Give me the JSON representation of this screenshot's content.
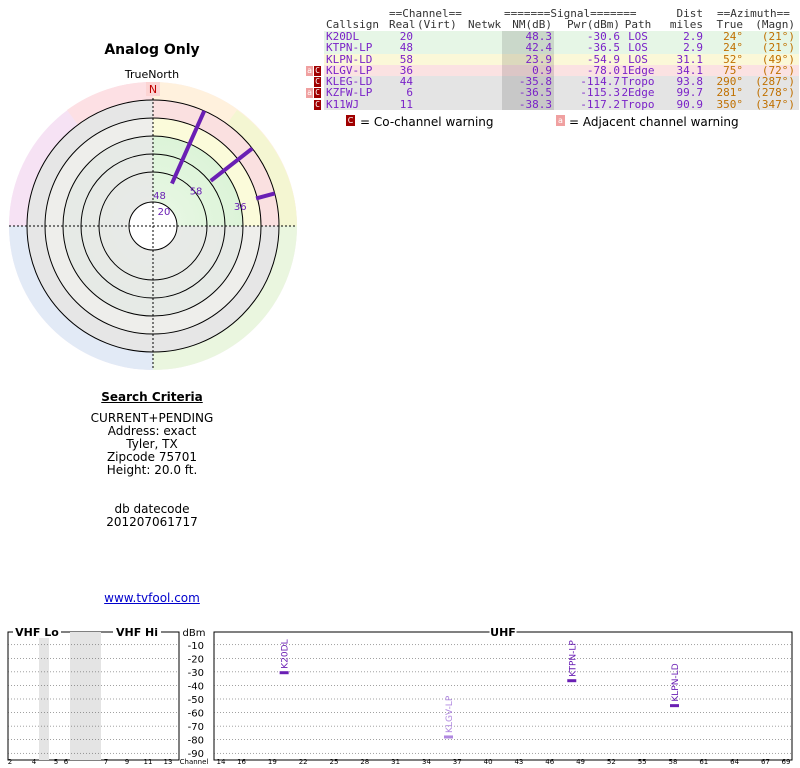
{
  "left_panel": {
    "title": "Analog Only",
    "north_label": "TrueNorth",
    "north_letter": "N"
  },
  "polar_plot": {
    "stations": [
      {
        "label": "48",
        "azimuth_true": 24,
        "nm_db": 42.4,
        "color": "#6a1fb4"
      },
      {
        "label": "20",
        "azimuth_true": 24,
        "nm_db": 48.3,
        "color": "#6a1fb4"
      },
      {
        "label": "58",
        "azimuth_true": 52,
        "nm_db": 23.9,
        "color": "#6a1fb4"
      },
      {
        "label": "36",
        "azimuth_true": 75,
        "nm_db": 0.9,
        "color": "#6a1fb4"
      }
    ]
  },
  "search": {
    "heading": "Search Criteria",
    "criteria": "CURRENT+PENDING",
    "address": "Address: exact",
    "city": "Tyler, TX",
    "zip": "Zipcode 75701",
    "height": "Height: 20.0 ft.",
    "datecode_label": "db datecode",
    "datecode": "201207061717",
    "link": "www.tvfool.com"
  },
  "table": {
    "group_headers": {
      "channel": "==Channel==",
      "signal": "=======Signal=======",
      "dist": "Dist",
      "azimuth": "==Azimuth=="
    },
    "col_headers": {
      "callsign": "Callsign",
      "real": "Real",
      "virt": "(Virt)",
      "netwk": "Netwk",
      "nm": "NM(dB)",
      "pwr": "Pwr(dBm)",
      "path": "Path",
      "dist": "miles",
      "true": "True",
      "magn": "(Magn)"
    },
    "rows": [
      {
        "callsign": "K20DL",
        "real": "20",
        "virt": "",
        "netwk": "",
        "nm": "48.3",
        "pwr": "-30.6",
        "path": "LOS",
        "dist": "2.9",
        "true": "24°",
        "magn": "(21°)",
        "bg": "#e6f6e6",
        "warn": []
      },
      {
        "callsign": "KTPN-LP",
        "real": "48",
        "virt": "",
        "netwk": "",
        "nm": "42.4",
        "pwr": "-36.5",
        "path": "LOS",
        "dist": "2.9",
        "true": "24°",
        "magn": "(21°)",
        "bg": "#e6f6e6",
        "warn": []
      },
      {
        "callsign": "KLPN-LD",
        "real": "58",
        "virt": "",
        "netwk": "",
        "nm": "23.9",
        "pwr": "-54.9",
        "path": "LOS",
        "dist": "31.1",
        "true": "52°",
        "magn": "(49°)",
        "bg": "#fbf8d8",
        "warn": []
      },
      {
        "callsign": "KLGV-LP",
        "real": "36",
        "virt": "",
        "netwk": "",
        "nm": "0.9",
        "pwr": "-78.0",
        "path": "1Edge",
        "dist": "34.1",
        "true": "75°",
        "magn": "(72°)",
        "bg": "#fbe2e2",
        "warn": [
          "adj",
          "co"
        ]
      },
      {
        "callsign": "KLEG-LD",
        "real": "44",
        "virt": "",
        "netwk": "",
        "nm": "-35.8",
        "pwr": "-114.7",
        "path": "Tropo",
        "dist": "93.8",
        "true": "290°",
        "magn": "(287°)",
        "bg": "#e4e4e4",
        "warn": [
          "co"
        ]
      },
      {
        "callsign": "KZFW-LP",
        "real": "6",
        "virt": "",
        "netwk": "",
        "nm": "-36.5",
        "pwr": "-115.3",
        "path": "2Edge",
        "dist": "99.7",
        "true": "281°",
        "magn": "(278°)",
        "bg": "#e4e4e4",
        "warn": [
          "adj",
          "co"
        ]
      },
      {
        "callsign": "K11WJ",
        "real": "11",
        "virt": "",
        "netwk": "",
        "nm": "-38.3",
        "pwr": "-117.2",
        "path": "Tropo",
        "dist": "90.9",
        "true": "350°",
        "magn": "(347°)",
        "bg": "#e4e4e4",
        "warn": [
          "co"
        ]
      }
    ],
    "legend": {
      "co_icon": "C",
      "co_text": "= Co-channel warning",
      "adj_icon": "a",
      "adj_text": "= Adjacent channel warning"
    },
    "colors": {
      "callsign": "#7a22c8",
      "azimuth": "#c07000",
      "co_warn": "#a00000",
      "adj_warn": "#f0a0a0"
    }
  },
  "chart_data": {
    "type": "bar",
    "sections": [
      "VHF Lo",
      "VHF Hi",
      "UHF"
    ],
    "ylabel": "dBm",
    "xlabel": "Channel",
    "ylim": [
      -90,
      -10
    ],
    "y_ticks": [
      -10,
      -20,
      -30,
      -40,
      -50,
      -60,
      -70,
      -80,
      -90
    ],
    "vhf_lo_ticks": [
      "2",
      "4",
      "5",
      "6"
    ],
    "vhf_hi_ticks": [
      "7",
      "9",
      "11",
      "13"
    ],
    "uhf_ticks": [
      "14",
      "16",
      "19",
      "22",
      "25",
      "28",
      "31",
      "34",
      "37",
      "40",
      "43",
      "46",
      "49",
      "52",
      "55",
      "58",
      "61",
      "64",
      "67",
      "69"
    ],
    "uhf_range": [
      14,
      69
    ],
    "stations": [
      {
        "callsign": "K20DL",
        "channel": 20,
        "pwr_dbm": -30.6,
        "color": "#6a1fb4"
      },
      {
        "callsign": "KTPN-LP",
        "channel": 48,
        "pwr_dbm": -36.5,
        "color": "#6a1fb4"
      },
      {
        "callsign": "KLPN-LD",
        "channel": 58,
        "pwr_dbm": -54.9,
        "color": "#6a1fb4"
      },
      {
        "callsign": "KLGV-LP",
        "channel": 36,
        "pwr_dbm": -78.0,
        "color": "#b088e0"
      }
    ]
  }
}
